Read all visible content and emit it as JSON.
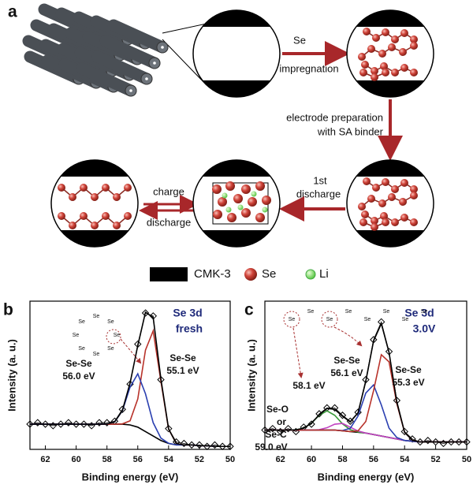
{
  "schematic": {
    "panel": "a",
    "impregnation": [
      "Se",
      "impregnation"
    ],
    "electrode": [
      "electrode preparation",
      "with SA binder"
    ],
    "first_discharge": [
      "1st",
      "discharge"
    ],
    "cycle": [
      "charge",
      "discharge"
    ],
    "legend": [
      "CMK-3",
      "Se",
      "Li"
    ]
  },
  "chart_data": [
    {
      "type": "line",
      "panel": "b",
      "xlabel": "Binding energy (eV)",
      "ylabel": "Intensity (a. u.)",
      "xlim": [
        63,
        50
      ],
      "ylim": [
        0,
        1
      ],
      "xticks": [
        62,
        60,
        58,
        56,
        54,
        52,
        50
      ],
      "annotations": [
        "Se 3d",
        "fresh",
        "Se-Se",
        "56.0 eV",
        "Se-Se",
        "55.1 eV"
      ],
      "structure": [
        "Se",
        "Se",
        "Se",
        "Se",
        "Se",
        "Se",
        "Se",
        "Se"
      ],
      "x": [
        63,
        62.5,
        62,
        61.5,
        61,
        60.5,
        60,
        59.5,
        59,
        58.5,
        58,
        57.5,
        57,
        56.5,
        56,
        55.5,
        55,
        54.5,
        54,
        53.5,
        53,
        52.5,
        52,
        51.5,
        51,
        50.5,
        50
      ],
      "series": [
        {
          "color": "#000000",
          "marker": "diamond",
          "values": [
            0.17,
            0.18,
            0.17,
            0.16,
            0.17,
            0.18,
            0.17,
            0.17,
            0.16,
            0.18,
            0.18,
            0.19,
            0.27,
            0.44,
            0.71,
            0.92,
            0.9,
            0.47,
            0.14,
            0.05,
            0.04,
            0.03,
            0.03,
            0.02,
            0.03,
            0.02,
            0.02
          ]
        },
        {
          "color": "#000000",
          "values": [
            0.17,
            0.17,
            0.17,
            0.17,
            0.17,
            0.17,
            0.17,
            0.17,
            0.17,
            0.17,
            0.17,
            0.17,
            0.17,
            0.165,
            0.15,
            0.12,
            0.09,
            0.06,
            0.04,
            0.03,
            0.03,
            0.03,
            0.025,
            0.025,
            0.02,
            0.02,
            0.02
          ]
        },
        {
          "color": "#b8322a",
          "values": [
            0.17,
            0.17,
            0.17,
            0.17,
            0.17,
            0.17,
            0.17,
            0.17,
            0.17,
            0.17,
            0.17,
            0.17,
            0.172,
            0.193,
            0.34,
            0.67,
            0.8,
            0.46,
            0.137,
            0.04,
            0.03,
            0.03,
            0.025,
            0.025,
            0.02,
            0.02,
            0.02
          ]
        },
        {
          "color": "#2a3fb0",
          "values": [
            0.17,
            0.17,
            0.17,
            0.17,
            0.17,
            0.17,
            0.17,
            0.17,
            0.17,
            0.17,
            0.171,
            0.186,
            0.26,
            0.42,
            0.51,
            0.375,
            0.18,
            0.076,
            0.041,
            0.03,
            0.03,
            0.03,
            0.025,
            0.025,
            0.02,
            0.02,
            0.02
          ]
        },
        {
          "color": "#000000",
          "values": [
            0.17,
            0.17,
            0.17,
            0.17,
            0.17,
            0.17,
            0.17,
            0.17,
            0.17,
            0.17,
            0.171,
            0.186,
            0.262,
            0.448,
            0.7,
            0.925,
            0.89,
            0.476,
            0.138,
            0.04,
            0.03,
            0.03,
            0.025,
            0.025,
            0.02,
            0.02,
            0.02
          ]
        }
      ]
    },
    {
      "type": "line",
      "panel": "c",
      "xlabel": "Binding energy (eV)",
      "ylabel": "Intensity (a. u.)",
      "xlim": [
        63,
        50
      ],
      "ylim": [
        0,
        1
      ],
      "xticks": [
        62,
        60,
        58,
        56,
        54,
        52,
        50
      ],
      "annotations": [
        "Se 3d",
        "3.0V",
        "Se-O",
        "or",
        "Se-C",
        "59.0 eV",
        "58.1 eV",
        "Se-Se",
        "56.1 eV",
        "Se-Se",
        "55.3 eV"
      ],
      "structure": [
        "Se",
        "Se",
        "Se",
        "Se",
        "Se",
        "Se",
        "Se",
        "Se"
      ],
      "x": [
        63,
        62.5,
        62,
        61.5,
        61,
        60.5,
        60,
        59.5,
        59,
        58.5,
        58,
        57.5,
        57,
        56.5,
        56,
        55.5,
        55,
        54.5,
        54,
        53.5,
        53,
        52.5,
        52,
        51.5,
        51,
        50.5,
        50
      ],
      "series": [
        {
          "color": "#000000",
          "marker": "diamond",
          "values": [
            0.13,
            0.14,
            0.12,
            0.14,
            0.12,
            0.15,
            0.17,
            0.24,
            0.28,
            0.28,
            0.23,
            0.19,
            0.25,
            0.47,
            0.74,
            0.86,
            0.66,
            0.33,
            0.12,
            0.07,
            0.05,
            0.06,
            0.05,
            0.04,
            0.05,
            0.05,
            0.05
          ]
        },
        {
          "color": "#000000",
          "values": [
            0.13,
            0.13,
            0.13,
            0.13,
            0.13,
            0.13,
            0.13,
            0.13,
            0.13,
            0.13,
            0.125,
            0.12,
            0.115,
            0.11,
            0.1,
            0.09,
            0.08,
            0.07,
            0.06,
            0.055,
            0.05,
            0.05,
            0.05,
            0.05,
            0.05,
            0.05,
            0.05
          ]
        },
        {
          "color": "#3a9a3a",
          "values": [
            0.13,
            0.13,
            0.13,
            0.13,
            0.132,
            0.143,
            0.177,
            0.23,
            0.26,
            0.23,
            0.172,
            0.133,
            0.117,
            0.11,
            0.1,
            0.09,
            0.08,
            0.07,
            0.06,
            0.055,
            0.05,
            0.05,
            0.05,
            0.05,
            0.05,
            0.05,
            0.05
          ]
        },
        {
          "color": "#c040c0",
          "values": [
            0.13,
            0.13,
            0.13,
            0.13,
            0.13,
            0.13,
            0.13,
            0.133,
            0.146,
            0.17,
            0.175,
            0.15,
            0.124,
            0.11,
            0.1,
            0.09,
            0.08,
            0.07,
            0.06,
            0.055,
            0.05,
            0.05,
            0.05,
            0.05,
            0.05,
            0.05,
            0.05
          ]
        },
        {
          "color": "#2a3fb0",
          "values": [
            0.13,
            0.13,
            0.13,
            0.13,
            0.13,
            0.13,
            0.13,
            0.13,
            0.13,
            0.13,
            0.127,
            0.142,
            0.225,
            0.38,
            0.435,
            0.3,
            0.143,
            0.08,
            0.06,
            0.055,
            0.05,
            0.05,
            0.05,
            0.05,
            0.05,
            0.05,
            0.05
          ]
        },
        {
          "color": "#b8322a",
          "values": [
            0.13,
            0.13,
            0.13,
            0.13,
            0.13,
            0.13,
            0.13,
            0.13,
            0.13,
            0.13,
            0.125,
            0.12,
            0.125,
            0.188,
            0.396,
            0.639,
            0.59,
            0.308,
            0.115,
            0.061,
            0.05,
            0.05,
            0.05,
            0.05,
            0.05,
            0.05,
            0.05
          ]
        },
        {
          "color": "#000000",
          "values": [
            0.13,
            0.13,
            0.13,
            0.13,
            0.132,
            0.143,
            0.177,
            0.233,
            0.276,
            0.27,
            0.224,
            0.185,
            0.246,
            0.46,
            0.731,
            0.849,
            0.653,
            0.318,
            0.115,
            0.061,
            0.05,
            0.05,
            0.05,
            0.05,
            0.05,
            0.05,
            0.05
          ]
        }
      ]
    }
  ]
}
